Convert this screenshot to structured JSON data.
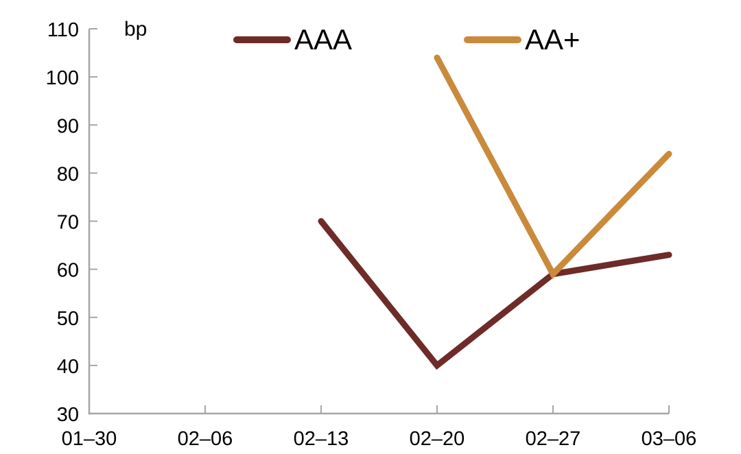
{
  "chart_data": {
    "type": "line",
    "title": "",
    "ylabel": "bp",
    "xlabel": "",
    "categories": [
      "01–30",
      "02–06",
      "02–13",
      "02–20",
      "02–27",
      "03–06"
    ],
    "series": [
      {
        "name": "AAA",
        "color": "#6e2b28",
        "values": [
          null,
          null,
          70,
          40,
          59,
          63
        ]
      },
      {
        "name": "AA+",
        "color": "#c98a3b",
        "values": [
          null,
          null,
          null,
          104,
          59,
          84
        ]
      }
    ],
    "ylim": [
      30,
      110
    ],
    "yticks": [
      30,
      40,
      50,
      60,
      70,
      80,
      90,
      100,
      110
    ],
    "grid": false,
    "legend_position": "top-center",
    "axis_color": "#a6a6a6",
    "text_color": "#000000",
    "background": "#ffffff"
  }
}
